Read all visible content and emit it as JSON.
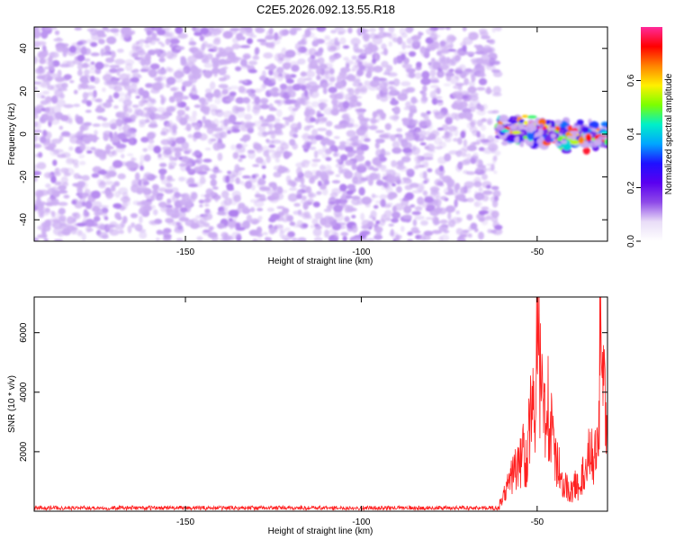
{
  "figure": {
    "title": "C2E5.2026.092.13.55.R18"
  },
  "chart_data": [
    {
      "type": "heatmap",
      "xlabel": "Height of straight line (km)",
      "ylabel": "Frequency (Hz)",
      "xlim": [
        -193,
        -30
      ],
      "ylim": [
        -50,
        50
      ],
      "x_ticks": [
        -150,
        -100,
        -50
      ],
      "y_ticks": [
        -40,
        -20,
        0,
        20,
        40
      ],
      "colorbar": {
        "label": "Normalized spectral amplitude",
        "range": [
          0,
          0.8
        ],
        "ticks": [
          0.0,
          0.2,
          0.4,
          0.6
        ],
        "colormap": [
          "#ffffff",
          "#e9ddf7",
          "#8e4ae8",
          "#5a00f0",
          "#1f10ff",
          "#00a6ff",
          "#00f0c8",
          "#7cff00",
          "#fff000",
          "#ff8400",
          "#ff0000",
          "#ff2a9a"
        ]
      },
      "regions": [
        {
          "x_range": [
            -193,
            -61
          ],
          "y_range": [
            -50,
            50
          ],
          "amplitude_range": [
            0.0,
            0.12
          ],
          "description": "diffuse noise"
        },
        {
          "x_range": [
            -61,
            -30
          ],
          "y_range": [
            -8,
            8
          ],
          "amplitude_range": [
            0.05,
            0.78
          ],
          "description": "echo band near 0 Hz"
        }
      ]
    },
    {
      "type": "line",
      "xlabel": "Height of straight line (km)",
      "ylabel": "SNR (10 * v/v)",
      "xlim": [
        -193,
        -30
      ],
      "ylim": [
        0,
        7200
      ],
      "x_ticks": [
        -150,
        -100,
        -50
      ],
      "y_ticks": [
        2000,
        4000,
        6000
      ],
      "series": [
        {
          "color": "#ff2020",
          "x": [
            -193,
            -180,
            -170,
            -160,
            -150,
            -140,
            -130,
            -120,
            -110,
            -100,
            -90,
            -80,
            -70,
            -64,
            -61,
            -59,
            -57,
            -55,
            -54,
            -53,
            -52,
            -51,
            -50,
            -49,
            -48,
            -47,
            -46,
            -45,
            -44,
            -43,
            -42,
            -41,
            -40,
            -39,
            -38,
            -37,
            -36,
            -35,
            -34,
            -33,
            -32,
            -31,
            -30
          ],
          "values": [
            100,
            110,
            90,
            100,
            105,
            95,
            100,
            110,
            95,
            100,
            105,
            100,
            110,
            120,
            200,
            800,
            1600,
            1900,
            2500,
            2100,
            3900,
            4200,
            6900,
            5100,
            4300,
            4900,
            3300,
            2200,
            1900,
            1300,
            1100,
            900,
            800,
            1200,
            900,
            1500,
            1400,
            2900,
            1900,
            3200,
            6500,
            4800,
            2200
          ]
        }
      ]
    }
  ]
}
